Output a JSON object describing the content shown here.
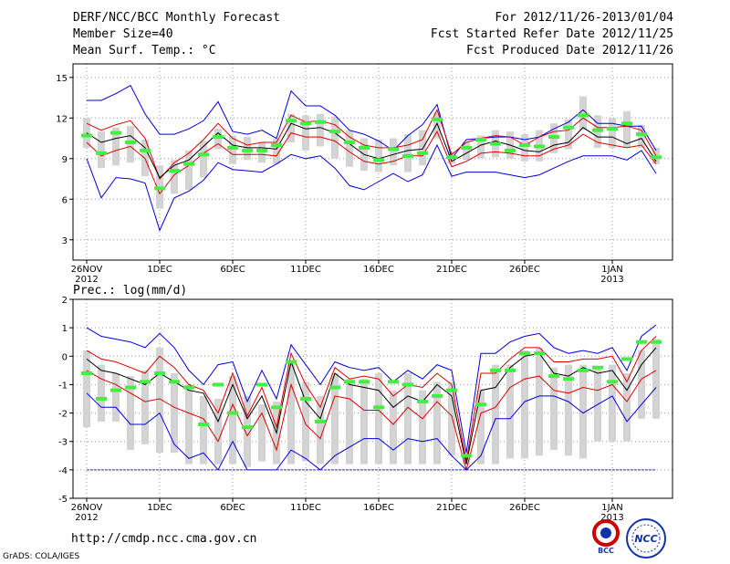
{
  "header": {
    "title": "DERF/NCC/BCC Monthly Forecast",
    "member": "Member Size=40",
    "variable": "Mean Surf. Temp.: °C",
    "period": "For 2012/11/26-2013/01/04",
    "started": "Fcst Started Refer Date 2012/11/25",
    "produced": "Fcst Produced Date 2012/11/26"
  },
  "footer": {
    "url": "http://cmdp.ncc.cma.gov.cn",
    "credit": "GrADS: COLA/IGES",
    "logo_bcc": "BCC",
    "logo_ncc": "NCC"
  },
  "colors": {
    "max_min": "#0000dd",
    "spread": "#dd0000",
    "mean": "#000000",
    "obs": "#44ee44",
    "box": "#d3d3d3"
  },
  "chart_data": [
    {
      "type": "line",
      "name": "temperature",
      "title": "Mean Surf. Temp.: °C",
      "xlabel": "",
      "ylabel": "",
      "ylim": [
        1.5,
        16
      ],
      "yticks": [
        3,
        6,
        9,
        12,
        15
      ],
      "grid": true,
      "xticks": [
        {
          "day": 0,
          "label": "26NOV",
          "sub": "2012"
        },
        {
          "day": 5,
          "label": "1DEC",
          "sub": ""
        },
        {
          "day": 10,
          "label": "6DEC",
          "sub": ""
        },
        {
          "day": 15,
          "label": "11DEC",
          "sub": ""
        },
        {
          "day": 20,
          "label": "16DEC",
          "sub": ""
        },
        {
          "day": 25,
          "label": "21DEC",
          "sub": ""
        },
        {
          "day": 30,
          "label": "26DEC",
          "sub": ""
        },
        {
          "day": 36,
          "label": "1JAN",
          "sub": "2013"
        }
      ],
      "days": [
        0,
        1,
        2,
        3,
        4,
        5,
        6,
        7,
        8,
        9,
        10,
        11,
        12,
        13,
        14,
        15,
        16,
        17,
        18,
        19,
        20,
        21,
        22,
        23,
        24,
        25,
        26,
        27,
        28,
        29,
        30,
        31,
        32,
        33,
        34,
        35,
        36,
        37,
        38,
        39
      ],
      "series": [
        {
          "name": "max",
          "values": [
            13.3,
            13.3,
            13.8,
            14.4,
            12.3,
            10.8,
            10.8,
            11.2,
            11.8,
            13.2,
            11.0,
            10.8,
            11.1,
            10.5,
            14.0,
            12.9,
            12.9,
            12.2,
            11.1,
            10.8,
            10.3,
            9.6,
            10.7,
            11.5,
            13.0,
            9.0,
            10.4,
            10.5,
            10.6,
            10.6,
            10.4,
            10.6,
            11.2,
            11.7,
            12.6,
            11.6,
            11.6,
            11.4,
            11.4,
            9.6
          ]
        },
        {
          "name": "upper",
          "values": [
            11.6,
            11.1,
            11.5,
            11.8,
            10.5,
            7.5,
            8.7,
            9.4,
            10.4,
            11.6,
            10.5,
            10.0,
            10.2,
            10.2,
            12.2,
            11.7,
            11.8,
            11.5,
            10.6,
            10.0,
            9.8,
            9.8,
            10.0,
            10.4,
            12.6,
            9.3,
            10.2,
            10.5,
            10.7,
            10.6,
            10.0,
            10.6,
            11.0,
            11.1,
            12.0,
            11.3,
            11.3,
            11.4,
            11.1,
            9.2
          ]
        },
        {
          "name": "mean",
          "values": [
            10.9,
            10.2,
            10.5,
            10.7,
            9.8,
            7.6,
            8.5,
            8.9,
            9.9,
            10.9,
            10.0,
            9.8,
            9.8,
            9.7,
            11.6,
            11.2,
            11.3,
            10.9,
            10.1,
            9.3,
            9.0,
            9.3,
            9.6,
            9.7,
            11.6,
            8.8,
            9.4,
            10.0,
            10.3,
            10.0,
            9.6,
            9.5,
            10.0,
            10.2,
            11.3,
            10.6,
            10.6,
            10.1,
            10.5,
            8.8
          ]
        },
        {
          "name": "lower",
          "values": [
            10.2,
            9.2,
            9.6,
            9.9,
            9.0,
            6.4,
            7.8,
            8.5,
            9.4,
            10.1,
            9.3,
            9.3,
            9.3,
            9.2,
            10.9,
            10.6,
            10.6,
            10.3,
            9.5,
            8.8,
            8.6,
            8.8,
            9.2,
            9.2,
            11.0,
            8.4,
            8.8,
            9.4,
            9.5,
            9.4,
            9.2,
            9.2,
            9.7,
            10.0,
            10.8,
            10.2,
            10.0,
            9.8,
            10.0,
            8.6
          ]
        },
        {
          "name": "min",
          "values": [
            9.0,
            6.1,
            7.6,
            7.5,
            7.2,
            3.7,
            6.1,
            6.6,
            7.4,
            8.7,
            8.2,
            8.1,
            8.0,
            8.6,
            9.3,
            9.0,
            9.2,
            8.3,
            7.0,
            6.7,
            7.3,
            7.9,
            7.3,
            7.8,
            10.0,
            7.7,
            8.0,
            8.0,
            8.0,
            7.8,
            7.6,
            7.8,
            8.3,
            8.8,
            9.2,
            9.2,
            9.2,
            8.9,
            9.6,
            7.9
          ]
        }
      ],
      "boxes": [
        [
          12.0,
          9.8
        ],
        [
          11.0,
          8.3
        ],
        [
          11.3,
          8.5
        ],
        [
          11.4,
          8.7
        ],
        [
          10.4,
          7.7
        ],
        [
          8.5,
          5.3
        ],
        [
          8.9,
          6.4
        ],
        [
          9.6,
          6.7
        ],
        [
          10.3,
          7.6
        ],
        [
          11.2,
          9.7
        ],
        [
          10.7,
          8.6
        ],
        [
          10.6,
          8.9
        ],
        [
          10.2,
          8.7
        ],
        [
          10.5,
          8.6
        ],
        [
          12.3,
          10.2
        ],
        [
          12.2,
          9.6
        ],
        [
          12.3,
          9.9
        ],
        [
          12.1,
          9.0
        ],
        [
          11.1,
          8.4
        ],
        [
          10.5,
          8.1
        ],
        [
          10.4,
          8.0
        ],
        [
          10.5,
          8.5
        ],
        [
          10.8,
          8.0
        ],
        [
          11.1,
          8.5
        ],
        [
          12.4,
          10.5
        ],
        [
          9.5,
          8.6
        ],
        [
          10.2,
          8.9
        ],
        [
          10.7,
          9.0
        ],
        [
          11.1,
          9.1
        ],
        [
          11.0,
          9.0
        ],
        [
          10.8,
          8.8
        ],
        [
          11.1,
          8.8
        ],
        [
          11.6,
          9.4
        ],
        [
          11.9,
          9.7
        ],
        [
          13.6,
          11.1
        ],
        [
          12.2,
          9.8
        ],
        [
          12.0,
          9.8
        ],
        [
          12.5,
          9.8
        ],
        [
          11.5,
          9.8
        ],
        [
          9.8,
          8.6
        ]
      ],
      "obs": [
        10.7,
        9.4,
        10.9,
        10.2,
        9.6,
        6.8,
        8.1,
        8.6,
        9.3,
        10.6,
        9.8,
        9.6,
        9.6,
        10.0,
        11.8,
        11.6,
        11.7,
        11.0,
        10.2,
        9.8,
        8.9,
        9.7,
        9.2,
        9.4,
        11.9,
        9.1,
        9.8,
        10.4,
        10.1,
        9.6,
        10.0,
        9.9,
        10.6,
        11.3,
        12.2,
        11.1,
        11.2,
        11.6,
        10.8,
        9.1
      ]
    },
    {
      "type": "line",
      "name": "precipitation",
      "title": "Prec.: log(mm/d)",
      "xlabel": "",
      "ylabel": "",
      "ylim": [
        -5,
        2
      ],
      "yticks": [
        -5,
        -4,
        -3,
        -2,
        -1,
        0,
        1,
        2
      ],
      "grid": true,
      "baseline": -4,
      "xticks": [
        {
          "day": 0,
          "label": "26NOV",
          "sub": "2012"
        },
        {
          "day": 5,
          "label": "1DEC",
          "sub": ""
        },
        {
          "day": 10,
          "label": "6DEC",
          "sub": ""
        },
        {
          "day": 15,
          "label": "11DEC",
          "sub": ""
        },
        {
          "day": 20,
          "label": "16DEC",
          "sub": ""
        },
        {
          "day": 25,
          "label": "21DEC",
          "sub": ""
        },
        {
          "day": 30,
          "label": "26DEC",
          "sub": ""
        },
        {
          "day": 36,
          "label": "1JAN",
          "sub": "2013"
        }
      ],
      "days": [
        0,
        1,
        2,
        3,
        4,
        5,
        6,
        7,
        8,
        9,
        10,
        11,
        12,
        13,
        14,
        15,
        16,
        17,
        18,
        19,
        20,
        21,
        22,
        23,
        24,
        25,
        26,
        27,
        28,
        29,
        30,
        31,
        32,
        33,
        34,
        35,
        36,
        37,
        38,
        39
      ],
      "series": [
        {
          "name": "max",
          "values": [
            1.0,
            0.7,
            0.6,
            0.5,
            0.3,
            0.8,
            0.3,
            -0.5,
            -1.0,
            -0.3,
            -0.2,
            -1.6,
            -0.5,
            -1.5,
            0.4,
            -0.3,
            -1.0,
            -0.2,
            -0.4,
            -0.5,
            -0.4,
            -0.9,
            -0.5,
            -0.8,
            -0.3,
            -0.5,
            -3.4,
            0.1,
            0.1,
            0.5,
            0.7,
            0.8,
            0.3,
            0.1,
            0.2,
            0.1,
            0.3,
            -0.5,
            0.7,
            1.1
          ]
        },
        {
          "name": "upper",
          "values": [
            0.2,
            -0.1,
            -0.2,
            -0.4,
            -0.6,
            0.0,
            -0.4,
            -1.0,
            -1.2,
            -2.0,
            -0.6,
            -2.1,
            -1.1,
            -2.5,
            0.1,
            -1.0,
            -1.8,
            -0.4,
            -0.8,
            -0.7,
            -0.8,
            -1.4,
            -1.0,
            -1.1,
            -0.6,
            -1.0,
            -3.7,
            -0.6,
            -0.6,
            -0.1,
            0.3,
            0.3,
            -0.2,
            -0.2,
            -0.1,
            -0.1,
            0.0,
            -0.9,
            0.2,
            0.7
          ]
        },
        {
          "name": "mean",
          "values": [
            -0.1,
            -0.5,
            -0.6,
            -0.8,
            -1.0,
            -0.6,
            -0.9,
            -1.2,
            -1.3,
            -2.3,
            -1.0,
            -2.2,
            -1.4,
            -2.7,
            -0.2,
            -1.6,
            -2.2,
            -0.6,
            -1.0,
            -1.1,
            -1.2,
            -1.8,
            -1.4,
            -1.6,
            -1.0,
            -1.4,
            -3.8,
            -1.2,
            -1.1,
            -0.4,
            0.0,
            0.1,
            -0.6,
            -0.7,
            -0.4,
            -0.6,
            -0.5,
            -1.2,
            -0.3,
            0.3
          ]
        },
        {
          "name": "lower",
          "values": [
            -0.5,
            -0.8,
            -1.0,
            -1.3,
            -1.6,
            -1.5,
            -1.8,
            -2.0,
            -2.2,
            -3.0,
            -1.7,
            -2.8,
            -2.0,
            -3.3,
            -1.0,
            -2.4,
            -2.9,
            -1.4,
            -1.5,
            -1.9,
            -1.9,
            -2.4,
            -1.8,
            -2.2,
            -1.6,
            -2.1,
            -4.0,
            -2.0,
            -1.8,
            -1.1,
            -0.8,
            -0.7,
            -1.2,
            -1.3,
            -1.1,
            -1.2,
            -1.0,
            -1.6,
            -0.8,
            -0.5
          ]
        },
        {
          "name": "min",
          "values": [
            -1.3,
            -1.8,
            -1.8,
            -2.4,
            -2.4,
            -2.0,
            -3.1,
            -3.6,
            -3.4,
            -4.0,
            -3.0,
            -4.0,
            -4.0,
            -4.0,
            -3.3,
            -3.6,
            -4.0,
            -3.5,
            -3.2,
            -2.9,
            -2.9,
            -3.3,
            -2.9,
            -3.0,
            -2.9,
            -3.5,
            -4.0,
            -3.5,
            -2.2,
            -2.2,
            -1.6,
            -1.4,
            -1.4,
            -1.6,
            -2.0,
            -1.7,
            -1.4,
            -2.3,
            -1.7,
            -1.1
          ]
        },
        {
          "name": "floor",
          "values": [
            -4,
            -4,
            -4,
            -4,
            -4,
            -4,
            -4,
            -4,
            -4,
            -4,
            -4,
            -4,
            -4,
            -4,
            -4,
            -4,
            -4,
            -4,
            -4,
            -4,
            -4,
            -4,
            -4,
            -4,
            -4,
            -4,
            -4,
            -4,
            -4,
            -4,
            -4,
            -4,
            -4,
            -4,
            -4,
            -4,
            -4,
            -4,
            -4,
            -4
          ]
        }
      ],
      "boxes": [
        [
          0.2,
          -2.5
        ],
        [
          -0.3,
          -2.3
        ],
        [
          -0.6,
          -2.3
        ],
        [
          -0.7,
          -3.3
        ],
        [
          -0.5,
          -3.1
        ],
        [
          0.3,
          -3.4
        ],
        [
          -0.6,
          -3.4
        ],
        [
          -1.0,
          -3.8
        ],
        [
          -1.4,
          -3.8
        ],
        [
          -1.5,
          -3.8
        ],
        [
          -0.7,
          -3.8
        ],
        [
          -1.4,
          -3.9
        ],
        [
          -1.7,
          -3.7
        ],
        [
          -1.6,
          -3.8
        ],
        [
          -0.2,
          -3.8
        ],
        [
          -0.9,
          -3.7
        ],
        [
          -1.4,
          -3.8
        ],
        [
          -0.6,
          -3.8
        ],
        [
          -0.8,
          -3.8
        ],
        [
          -0.8,
          -3.8
        ],
        [
          -0.6,
          -3.8
        ],
        [
          -1.2,
          -3.8
        ],
        [
          -0.6,
          -3.8
        ],
        [
          -1.2,
          -3.8
        ],
        [
          -0.9,
          -3.8
        ],
        [
          -0.9,
          -3.5
        ],
        [
          -3.4,
          -3.8
        ],
        [
          -1.2,
          -3.8
        ],
        [
          -0.3,
          -3.8
        ],
        [
          -0.3,
          -3.6
        ],
        [
          0.2,
          -3.6
        ],
        [
          0.3,
          -3.5
        ],
        [
          -0.4,
          -3.3
        ],
        [
          -0.3,
          -3.5
        ],
        [
          -0.3,
          -3.6
        ],
        [
          -0.4,
          -3.0
        ],
        [
          -0.3,
          -3.0
        ],
        [
          -0.6,
          -3.0
        ],
        [
          0.2,
          -2.2
        ],
        [
          0.6,
          -2.2
        ]
      ],
      "obs": [
        -0.6,
        -1.5,
        -1.2,
        -1.1,
        -0.9,
        -0.6,
        -0.9,
        -1.1,
        -2.4,
        -1.0,
        -2.0,
        -2.5,
        -1.0,
        -1.8,
        -0.2,
        -1.5,
        -2.3,
        -1.1,
        -0.9,
        -0.9,
        -1.8,
        -0.9,
        -1.0,
        -1.6,
        -1.4,
        -1.2,
        -3.5,
        -1.7,
        -0.5,
        -0.5,
        0.1,
        0.1,
        -0.7,
        -0.8,
        -0.5,
        -0.4,
        -0.9,
        -0.1,
        0.5,
        0.5
      ]
    }
  ]
}
